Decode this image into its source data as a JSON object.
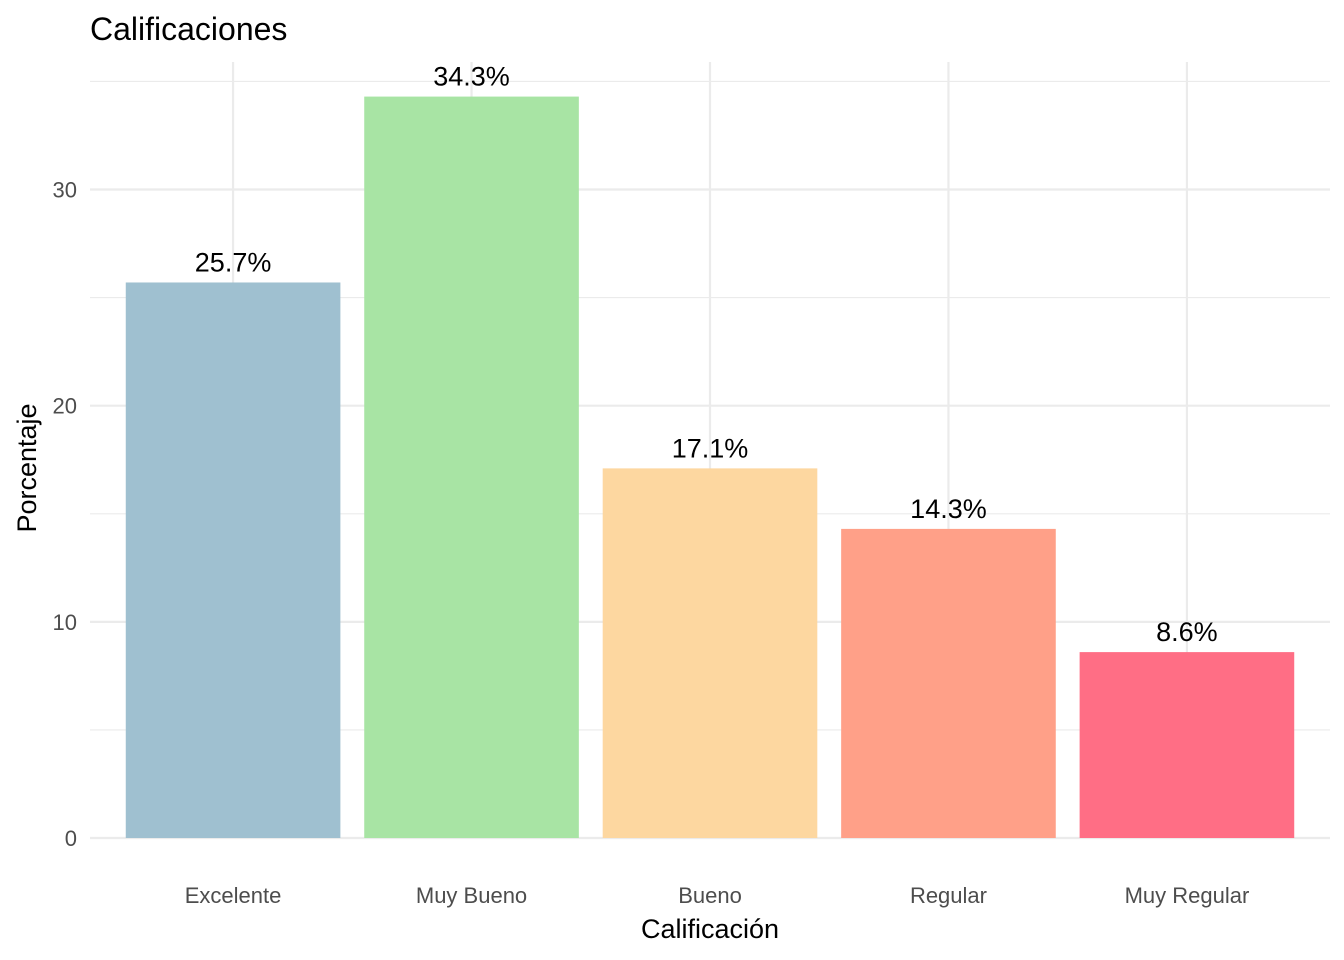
{
  "chart_data": {
    "type": "bar",
    "title": "Calificaciones",
    "xlabel": "Calificación",
    "ylabel": "Porcentaje",
    "categories": [
      "Excelente",
      "Muy Bueno",
      "Bueno",
      "Regular",
      "Muy Regular"
    ],
    "values": [
      25.7,
      34.3,
      17.1,
      14.3,
      8.6
    ],
    "data_labels": [
      "25.7%",
      "34.3%",
      "17.1%",
      "14.3%",
      "8.6%"
    ],
    "colors": [
      "#9fc0d0",
      "#a8e4a4",
      "#fdd7a0",
      "#ffa088",
      "#ff6e85"
    ],
    "y_ticks": [
      0,
      10,
      20,
      30
    ],
    "y_tick_labels": [
      "0",
      "10",
      "20",
      "30"
    ],
    "ylim": [
      0,
      35.9
    ],
    "grid": true,
    "legend": "none"
  }
}
